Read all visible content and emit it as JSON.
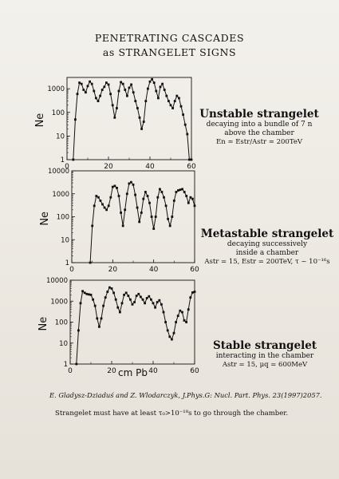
{
  "title_line1": "PENETRATING CASCADES",
  "title_line2": "as STRANGELET SIGNS",
  "x_axis_label": "cm  Pb",
  "annotations": [
    {
      "heading": "Unstable strangelet",
      "lines": [
        "decaying into a bundle of 7 n",
        "above the chamber"
      ],
      "formula": "En ≃ Estr/Astr ≃ 200TeV"
    },
    {
      "heading": "Metastable strangelet",
      "lines": [
        "decaying successively",
        "inside a chamber"
      ],
      "formula": "Astr = 15, Estr = 200TeV, τ ~ 10⁻¹⁶s"
    },
    {
      "heading": "Stable strangelet",
      "lines": [
        "interacting in the chamber"
      ],
      "formula": "Astr = 15, μq = 600MeV"
    }
  ],
  "reference": "E. Gladysz-Dziaduś and Z. Wlodarczyk, J.Phys.G: Nucl. Part. Phys. 23(1997)2057.",
  "note": "Strangelet must have at least τ₀>10⁻¹⁸s to go through the chamber.",
  "colors": {
    "ink": "#111111",
    "background": "#eeeae4"
  },
  "chart_data": [
    {
      "type": "line",
      "ylabel": "Ne",
      "xlim": [
        0,
        60
      ],
      "ylim": [
        1,
        3000
      ],
      "y_scale": "log",
      "x_ticks": [
        0,
        20,
        40,
        60
      ],
      "y_ticks": [
        1,
        10,
        100,
        1000
      ],
      "y_tick_labels": [
        "1",
        "10",
        "100",
        "1000"
      ],
      "x": [
        3,
        4,
        5,
        6,
        7,
        8,
        9,
        10,
        11,
        12,
        13,
        14,
        15,
        16,
        17,
        18,
        19,
        20,
        21,
        22,
        23,
        24,
        25,
        26,
        27,
        28,
        29,
        30,
        31,
        32,
        33,
        34,
        35,
        36,
        37,
        38,
        39,
        40,
        41,
        42,
        43,
        44,
        45,
        46,
        47,
        48,
        49,
        50,
        51,
        52,
        53,
        54,
        55,
        56,
        57,
        58,
        59,
        60
      ],
      "y": [
        1,
        50,
        600,
        1800,
        1600,
        900,
        700,
        1300,
        2000,
        1600,
        800,
        400,
        300,
        500,
        900,
        1200,
        1800,
        1500,
        600,
        200,
        60,
        150,
        800,
        1900,
        1600,
        900,
        500,
        1100,
        1500,
        700,
        300,
        150,
        60,
        20,
        40,
        300,
        1000,
        2000,
        2500,
        1800,
        800,
        400,
        1200,
        1600,
        900,
        500,
        300,
        200,
        150,
        300,
        500,
        400,
        180,
        80,
        30,
        12,
        1,
        1
      ]
    },
    {
      "type": "line",
      "ylabel": "Ne",
      "xlim": [
        0,
        60
      ],
      "ylim": [
        1,
        10000
      ],
      "y_scale": "log",
      "x_ticks": [
        0,
        20,
        40,
        60
      ],
      "y_ticks": [
        1,
        10,
        100,
        1000,
        10000
      ],
      "y_tick_labels": [
        "1",
        "10",
        "100",
        "1000",
        "10000"
      ],
      "x": [
        9,
        10,
        11,
        12,
        13,
        14,
        15,
        16,
        17,
        18,
        19,
        20,
        21,
        22,
        23,
        24,
        25,
        26,
        27,
        28,
        29,
        30,
        31,
        32,
        33,
        34,
        35,
        36,
        37,
        38,
        39,
        40,
        41,
        42,
        43,
        44,
        45,
        46,
        47,
        48,
        49,
        50,
        51,
        52,
        53,
        54,
        55,
        56,
        57,
        58,
        59,
        60
      ],
      "y": [
        1,
        40,
        300,
        800,
        700,
        500,
        350,
        250,
        200,
        300,
        700,
        2000,
        2200,
        1800,
        800,
        150,
        40,
        200,
        1000,
        2800,
        3200,
        2500,
        900,
        250,
        60,
        150,
        600,
        1200,
        800,
        400,
        100,
        30,
        100,
        700,
        1600,
        1200,
        700,
        300,
        80,
        40,
        100,
        500,
        1200,
        1400,
        1500,
        1600,
        1200,
        800,
        400,
        700,
        600,
        300
      ]
    },
    {
      "type": "line",
      "ylabel": "Ne",
      "xlim": [
        0,
        60
      ],
      "ylim": [
        1,
        10000
      ],
      "y_scale": "log",
      "x_ticks": [
        0,
        20,
        40,
        60
      ],
      "y_ticks": [
        1,
        10,
        100,
        1000,
        10000
      ],
      "y_tick_labels": [
        "1",
        "10",
        "100",
        "1000",
        "10000"
      ],
      "x": [
        3,
        4,
        5,
        6,
        7,
        8,
        9,
        10,
        11,
        12,
        13,
        14,
        15,
        16,
        17,
        18,
        19,
        20,
        21,
        22,
        23,
        24,
        25,
        26,
        27,
        28,
        29,
        30,
        31,
        32,
        33,
        34,
        35,
        36,
        37,
        38,
        39,
        40,
        41,
        42,
        43,
        44,
        45,
        46,
        47,
        48,
        49,
        50,
        51,
        52,
        53,
        54,
        55,
        56,
        57,
        58,
        59,
        60
      ],
      "y": [
        1,
        40,
        800,
        3000,
        2500,
        2200,
        2100,
        2000,
        1200,
        600,
        150,
        60,
        150,
        600,
        1500,
        2800,
        4500,
        4000,
        2500,
        1200,
        500,
        300,
        800,
        2000,
        2500,
        1800,
        1200,
        700,
        900,
        1800,
        2200,
        1600,
        1200,
        800,
        1400,
        1700,
        1200,
        800,
        500,
        900,
        1100,
        700,
        300,
        100,
        40,
        20,
        15,
        30,
        100,
        200,
        350,
        300,
        120,
        100,
        400,
        1500,
        2600,
        2800
      ]
    }
  ]
}
